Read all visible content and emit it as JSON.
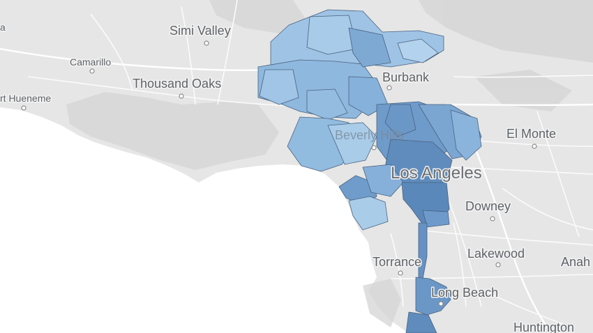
{
  "map": {
    "region": "Los Angeles",
    "place_labels": [
      {
        "id": "simi-valley",
        "text": "Simi Valley"
      },
      {
        "id": "camarillo",
        "text": "Camarillo"
      },
      {
        "id": "thousand-oaks",
        "text": "Thousand Oaks"
      },
      {
        "id": "port-hueneme",
        "text": "rt Hueneme"
      },
      {
        "id": "burbank",
        "text": "Burbank"
      },
      {
        "id": "el-monte",
        "text": "El Monte"
      },
      {
        "id": "beverly-hills",
        "text": "Beverly Hills"
      },
      {
        "id": "los-angeles",
        "text": "Los Angeles"
      },
      {
        "id": "downey",
        "text": "Downey"
      },
      {
        "id": "lakewood",
        "text": "Lakewood"
      },
      {
        "id": "torrance",
        "text": "Torrance"
      },
      {
        "id": "anaheim",
        "text": "Anah"
      },
      {
        "id": "long-beach",
        "text": "Long Beach"
      },
      {
        "id": "huntington",
        "text": "Huntington"
      },
      {
        "id": "ventura-partial",
        "text": "a"
      }
    ],
    "colors": {
      "land": "#e5e5e5",
      "hills": "#d6d6d6",
      "water": "#ffffff",
      "roads": "#fafafa",
      "choropleth_low": "#a9cde8",
      "choropleth_mid": "#82add6",
      "choropleth_high": "#5b86b6",
      "district_border": "#49617d"
    }
  }
}
